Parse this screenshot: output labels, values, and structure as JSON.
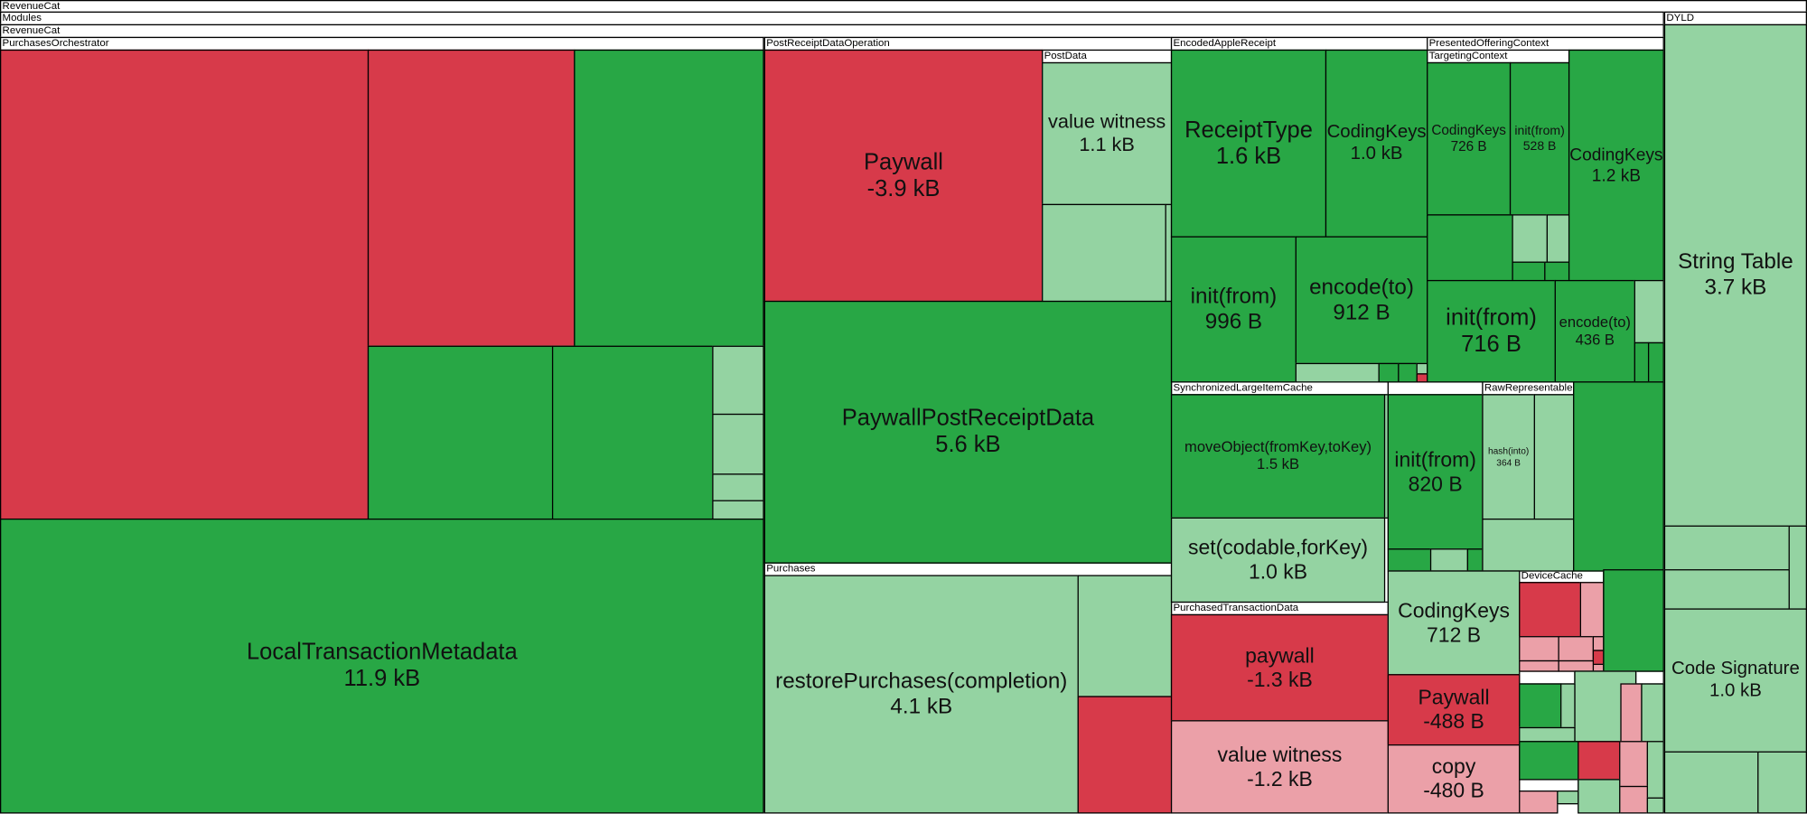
{
  "colors": {
    "red": "#d73a4a",
    "green": "#28a745",
    "light_green": "#94d3a2",
    "light_red": "#eba0a8"
  },
  "headers": [
    "RevenueCat",
    "Modules",
    "RevenueCat",
    "PurchasesOrchestrator",
    "PostReceiptDataOperation",
    "EncodedAppleReceipt",
    "PresentedOfferingContext",
    "PostData",
    "TargetingContext",
    "SynchronizedLargeItemCache",
    "",
    "RawRepresentable",
    "Purchases",
    "PurchasedTransactionData",
    "DeviceCache",
    "DYLD",
    "",
    "",
    ""
  ],
  "nodes": [
    {
      "label": "LocalTransactionMetadata",
      "size": "11.9 kB"
    },
    {
      "label": "Paywall",
      "size": "-3.9 kB"
    },
    {
      "label": "value witness",
      "size": "1.1 kB"
    },
    {
      "label": "PaywallPostReceiptData",
      "size": "5.6 kB"
    },
    {
      "label": "restorePurchases(completion)",
      "size": "4.1 kB"
    },
    {
      "label": "ReceiptType",
      "size": "1.6 kB"
    },
    {
      "label": "CodingKeys",
      "size": "1.0 kB"
    },
    {
      "label": "init(from)",
      "size": "996 B"
    },
    {
      "label": "encode(to)",
      "size": "912 B"
    },
    {
      "label": "CodingKeys",
      "size": "726 B"
    },
    {
      "label": "init(from)",
      "size": "528 B"
    },
    {
      "label": "CodingKeys",
      "size": "1.2 kB"
    },
    {
      "label": "init(from)",
      "size": "716 B"
    },
    {
      "label": "encode(to)",
      "size": "436 B"
    },
    {
      "label": "moveObject(fromKey,toKey)",
      "size": "1.5 kB"
    },
    {
      "label": "set(codable,forKey)",
      "size": "1.0 kB"
    },
    {
      "label": "init(from)",
      "size": "820 B"
    },
    {
      "label": "hash(into)",
      "size": "364 B"
    },
    {
      "label": "paywall",
      "size": "-1.3 kB"
    },
    {
      "label": "value witness",
      "size": "-1.2 kB"
    },
    {
      "label": "CodingKeys",
      "size": "712 B"
    },
    {
      "label": "Paywall",
      "size": "-488 B"
    },
    {
      "label": "copy",
      "size": "-480 B"
    },
    {
      "label": "String Table",
      "size": "3.7 kB"
    },
    {
      "label": "Code Signature",
      "size": "1.0 kB"
    }
  ]
}
